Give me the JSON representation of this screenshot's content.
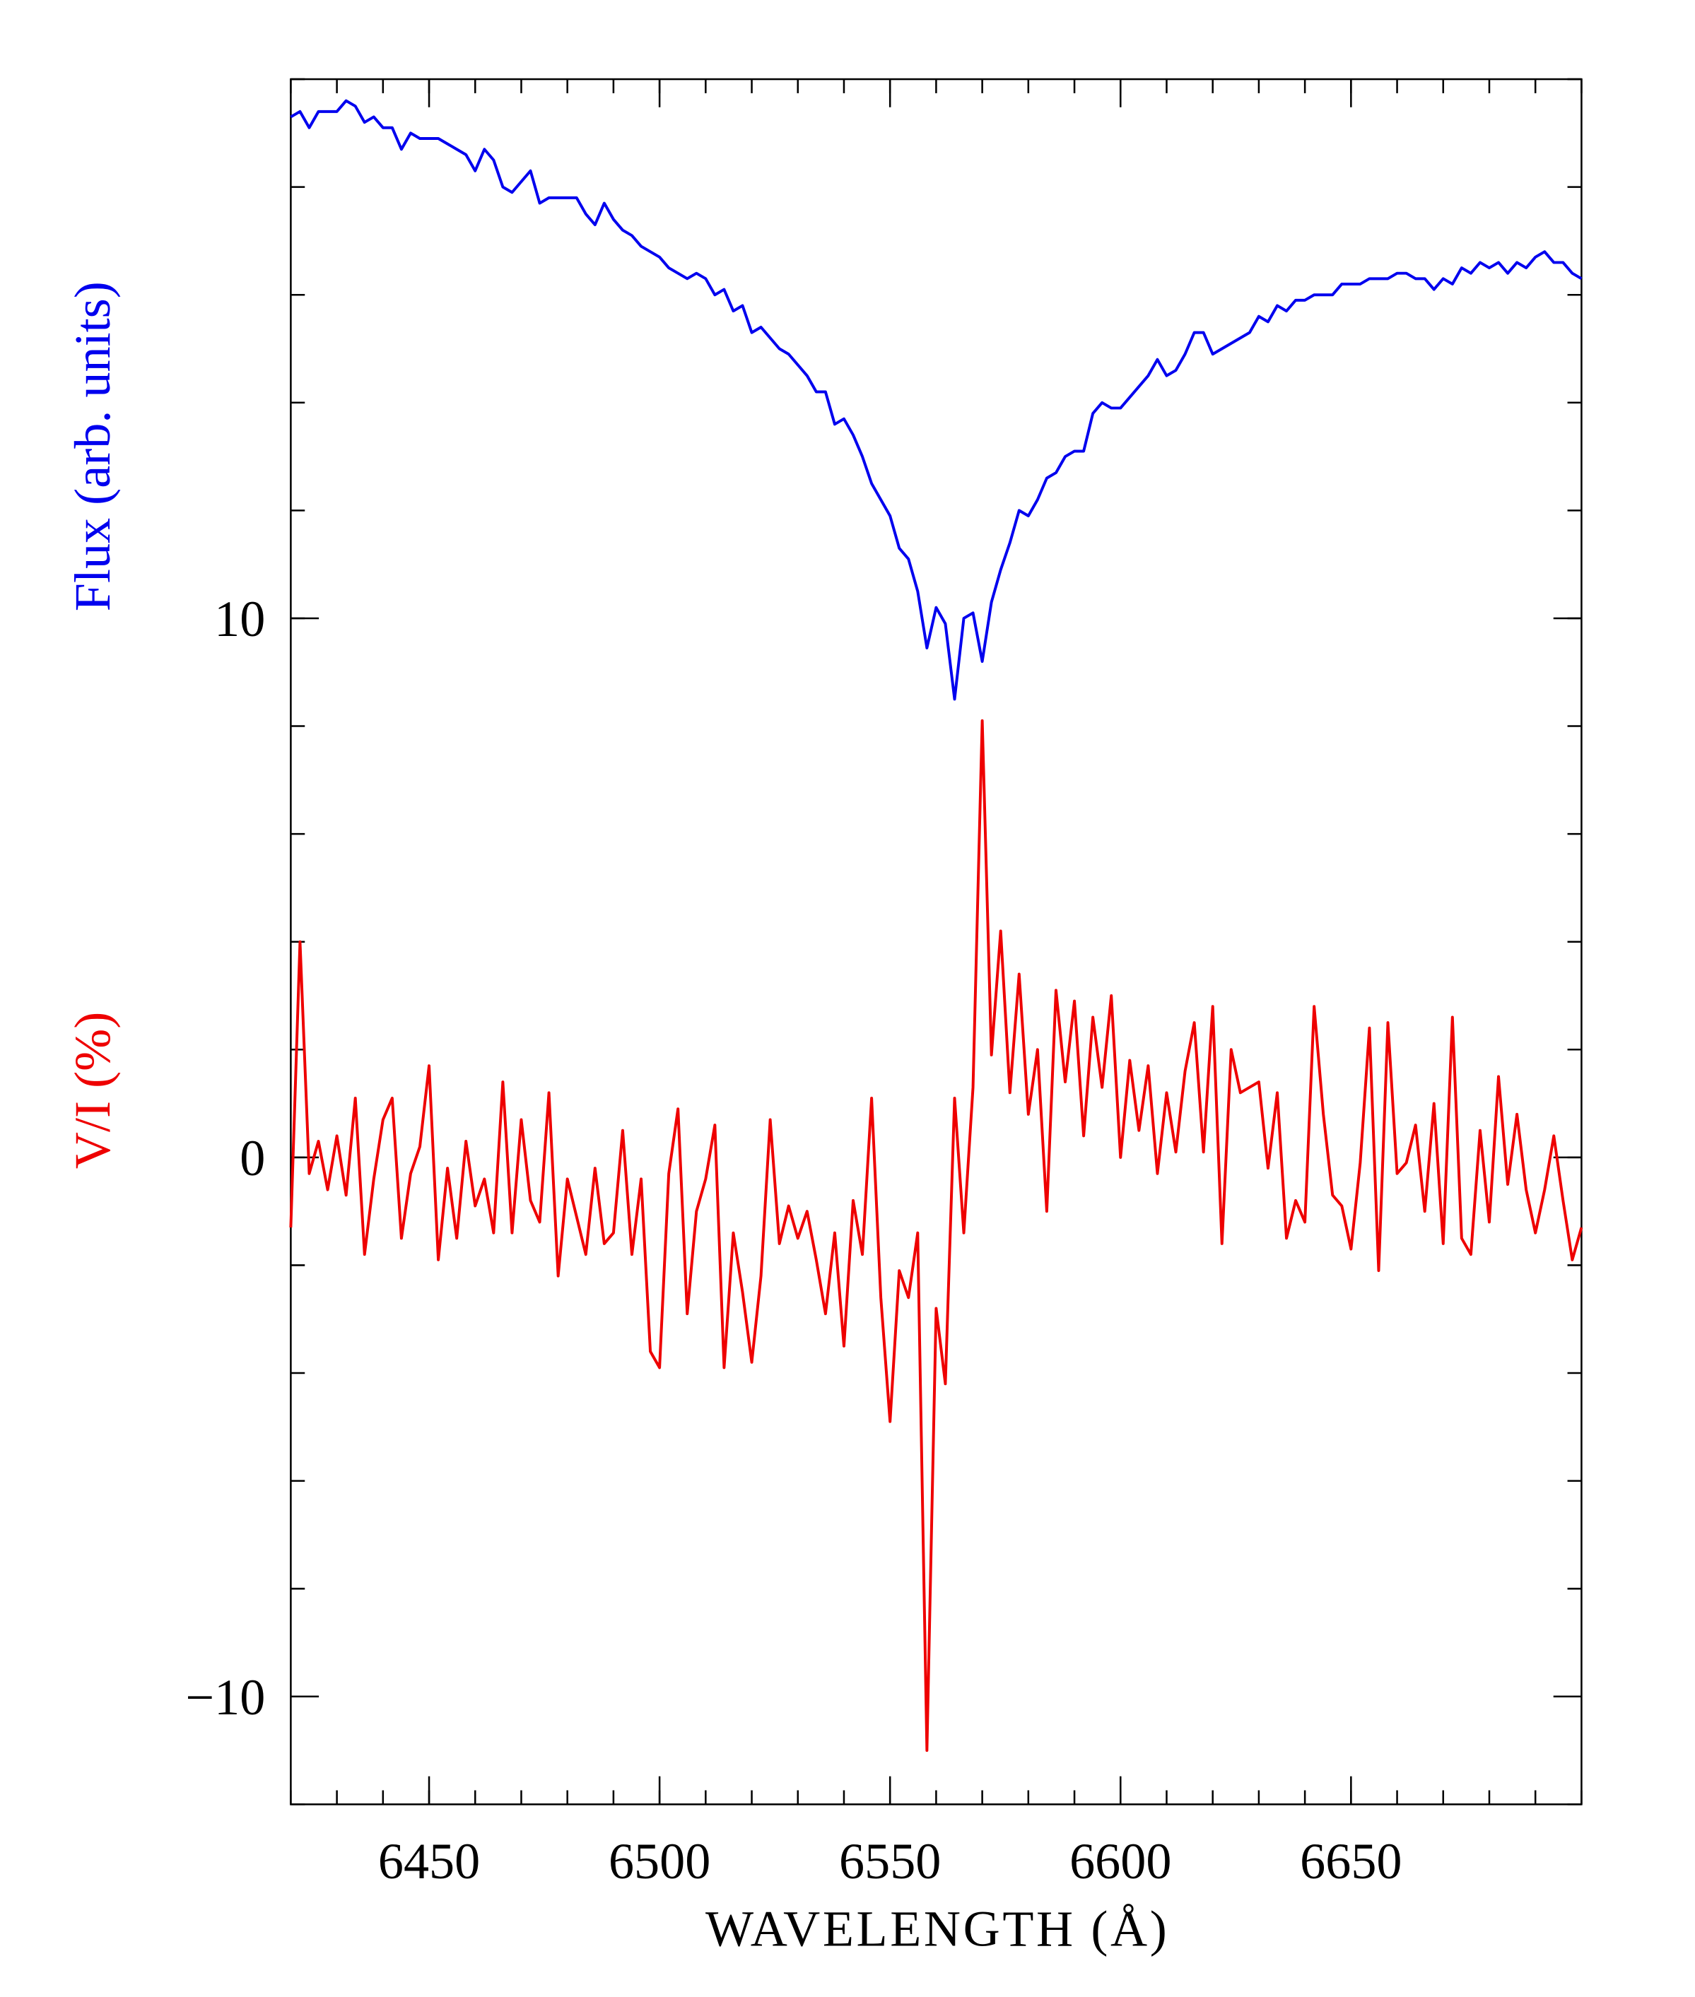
{
  "chart_data": {
    "type": "line",
    "xlabel": "WAVELENGTH (Å)",
    "xlim": [
      6420,
      6700
    ],
    "xticks": [
      6450,
      6500,
      6550,
      6600,
      6650
    ],
    "xticks_minor": [
      6420,
      6430,
      6440,
      6450,
      6460,
      6470,
      6480,
      6490,
      6500,
      6510,
      6520,
      6530,
      6540,
      6550,
      6560,
      6570,
      6580,
      6590,
      6600,
      6610,
      6620,
      6630,
      6640,
      6650,
      6660,
      6670,
      6680,
      6690,
      6700
    ],
    "ylim": [
      -12,
      20
    ],
    "yticks": [
      {
        "value": -10,
        "label": "−10"
      },
      0,
      10
    ],
    "yticks_minor": [
      -12,
      -10,
      -8,
      -6,
      -4,
      -2,
      0,
      2,
      4,
      6,
      8,
      10,
      12,
      14,
      16,
      18,
      20
    ],
    "x": [
      6420,
      6422,
      6424,
      6426,
      6428,
      6430,
      6432,
      6434,
      6436,
      6438,
      6440,
      6442,
      6444,
      6446,
      6448,
      6450,
      6452,
      6454,
      6456,
      6458,
      6460,
      6462,
      6464,
      6466,
      6468,
      6470,
      6472,
      6474,
      6476,
      6478,
      6480,
      6482,
      6484,
      6486,
      6488,
      6490,
      6492,
      6494,
      6496,
      6498,
      6500,
      6502,
      6504,
      6506,
      6508,
      6510,
      6512,
      6514,
      6516,
      6518,
      6520,
      6522,
      6524,
      6526,
      6528,
      6530,
      6532,
      6534,
      6536,
      6538,
      6540,
      6542,
      6544,
      6546,
      6548,
      6550,
      6552,
      6554,
      6556,
      6558,
      6560,
      6562,
      6564,
      6566,
      6568,
      6570,
      6572,
      6574,
      6576,
      6578,
      6580,
      6582,
      6584,
      6586,
      6588,
      6590,
      6592,
      6594,
      6596,
      6598,
      6600,
      6602,
      6604,
      6606,
      6608,
      6610,
      6612,
      6614,
      6616,
      6618,
      6620,
      6622,
      6624,
      6626,
      6628,
      6630,
      6632,
      6634,
      6636,
      6638,
      6640,
      6642,
      6644,
      6646,
      6648,
      6650,
      6652,
      6654,
      6656,
      6658,
      6660,
      6662,
      6664,
      6666,
      6668,
      6670,
      6672,
      6674,
      6676,
      6678,
      6680,
      6682,
      6684,
      6686,
      6688,
      6690,
      6692,
      6694,
      6696,
      6698,
      6700
    ],
    "series": [
      {
        "name": "Flux (arb. units)",
        "color": "#0000ee",
        "values": [
          19.3,
          19.4,
          19.1,
          19.4,
          19.4,
          19.4,
          19.6,
          19.5,
          19.2,
          19.3,
          19.1,
          19.1,
          18.7,
          19.0,
          18.9,
          18.9,
          18.9,
          18.8,
          18.7,
          18.6,
          18.3,
          18.7,
          18.5,
          18.0,
          17.9,
          18.1,
          18.3,
          17.7,
          17.8,
          17.8,
          17.8,
          17.8,
          17.5,
          17.3,
          17.7,
          17.4,
          17.2,
          17.1,
          16.9,
          16.8,
          16.7,
          16.5,
          16.4,
          16.3,
          16.4,
          16.3,
          16.0,
          16.1,
          15.7,
          15.8,
          15.3,
          15.4,
          15.2,
          15.0,
          14.9,
          14.7,
          14.5,
          14.2,
          14.2,
          13.6,
          13.7,
          13.4,
          13.0,
          12.5,
          12.2,
          11.9,
          11.3,
          11.1,
          10.5,
          9.45,
          10.2,
          9.9,
          8.5,
          10.0,
          10.1,
          9.2,
          10.3,
          10.9,
          11.4,
          12.0,
          11.9,
          12.2,
          12.6,
          12.7,
          13.0,
          13.1,
          13.1,
          13.8,
          14.0,
          13.9,
          13.9,
          14.1,
          14.3,
          14.5,
          14.8,
          14.5,
          14.6,
          14.9,
          15.3,
          15.3,
          14.9,
          15.0,
          15.1,
          15.2,
          15.3,
          15.6,
          15.5,
          15.8,
          15.7,
          15.9,
          15.9,
          16.0,
          16.0,
          16.0,
          16.2,
          16.2,
          16.2,
          16.3,
          16.3,
          16.3,
          16.4,
          16.4,
          16.3,
          16.3,
          16.1,
          16.3,
          16.2,
          16.5,
          16.4,
          16.6,
          16.5,
          16.6,
          16.4,
          16.6,
          16.5,
          16.7,
          16.8,
          16.6,
          16.6,
          16.4,
          16.3
        ]
      },
      {
        "name": "V/I (%)",
        "color": "#ee0000",
        "values": [
          -1.3,
          4.0,
          -0.3,
          0.3,
          -0.6,
          0.4,
          -0.7,
          1.1,
          -1.8,
          -0.4,
          0.7,
          1.1,
          -1.5,
          -0.3,
          0.2,
          1.7,
          -1.9,
          -0.2,
          -1.5,
          0.3,
          -0.9,
          -0.4,
          -1.4,
          1.4,
          -1.4,
          0.7,
          -0.8,
          -1.2,
          1.2,
          -2.2,
          -0.4,
          -1.1,
          -1.8,
          -0.2,
          -1.6,
          -1.4,
          0.5,
          -1.8,
          -0.4,
          -3.6,
          -3.9,
          -0.3,
          0.9,
          -2.9,
          -1.0,
          -0.4,
          0.6,
          -3.9,
          -1.4,
          -2.5,
          -3.8,
          -2.2,
          0.7,
          -1.6,
          -0.9,
          -1.5,
          -1.0,
          -1.9,
          -2.9,
          -1.4,
          -3.5,
          -0.8,
          -1.8,
          1.1,
          -2.6,
          -4.9,
          -2.1,
          -2.6,
          -1.4,
          -11.0,
          -2.8,
          -4.2,
          1.1,
          -1.4,
          1.3,
          8.1,
          1.9,
          4.2,
          1.2,
          3.4,
          0.8,
          2.0,
          -1.0,
          3.1,
          1.4,
          2.9,
          0.4,
          2.6,
          1.3,
          3.0,
          0.0,
          1.8,
          0.5,
          1.7,
          -0.3,
          1.2,
          0.1,
          1.6,
          2.5,
          0.1,
          2.8,
          -1.6,
          2.0,
          1.2,
          1.3,
          1.4,
          -0.2,
          1.2,
          -1.5,
          -0.8,
          -1.2,
          2.8,
          0.8,
          -0.7,
          -0.9,
          -1.7,
          -0.1,
          2.4,
          -2.1,
          2.5,
          -0.3,
          -0.1,
          0.6,
          -1.0,
          1.0,
          -1.6,
          2.6,
          -1.5,
          -1.8,
          0.5,
          -1.2,
          1.5,
          -0.5,
          0.8,
          -0.6,
          -1.4,
          -0.6,
          0.4,
          -0.8,
          -1.9,
          -1.3
        ]
      }
    ]
  }
}
